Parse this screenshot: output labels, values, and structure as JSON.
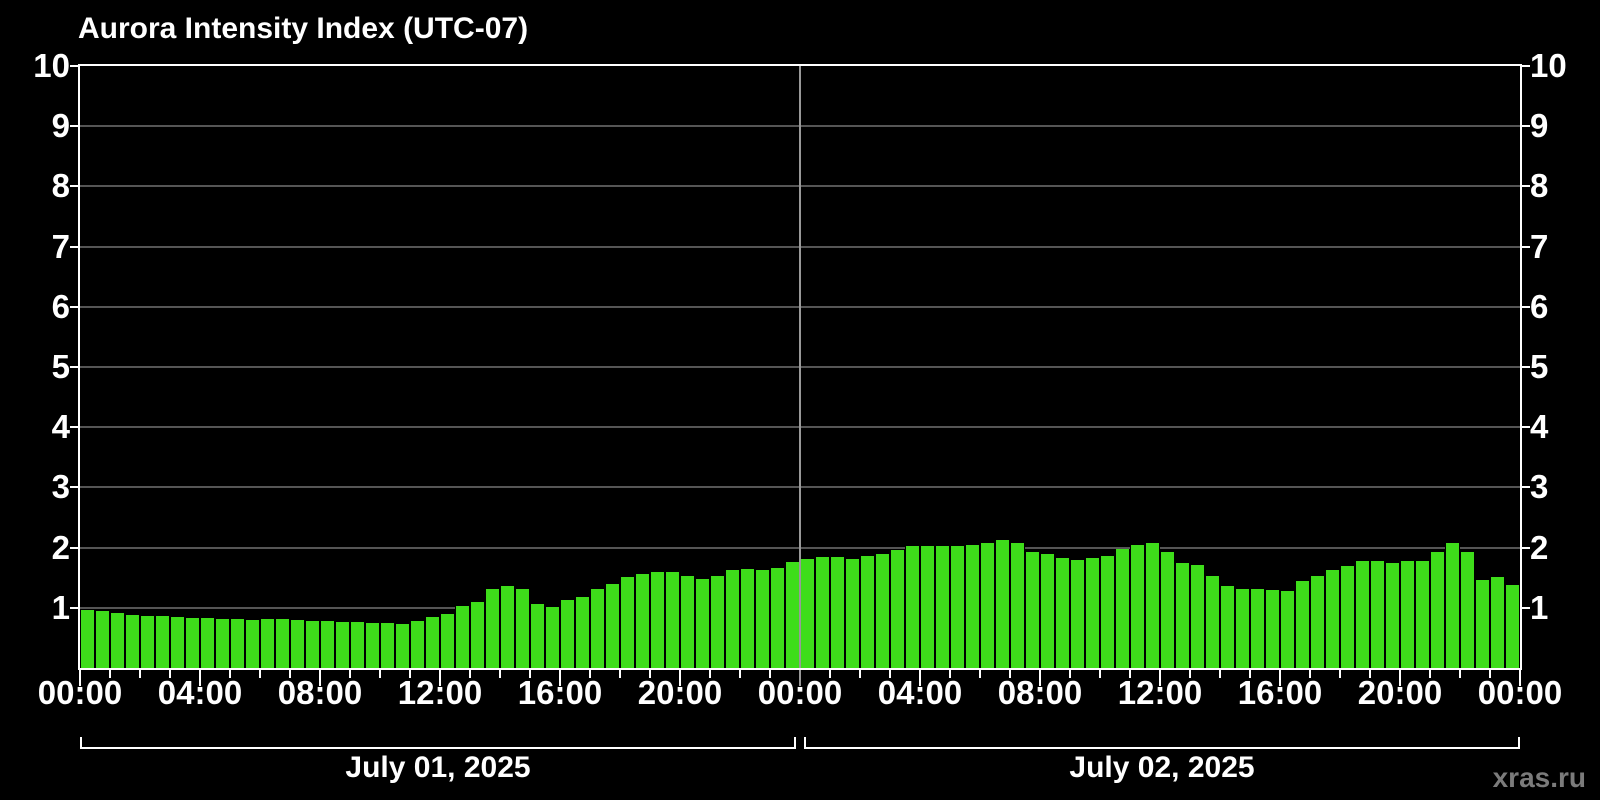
{
  "title": "Aurora Intensity Index (UTC-07)",
  "watermark": "xras.ru",
  "colors": {
    "background": "#000000",
    "bar": "#3edd1a",
    "grid": "#555555",
    "day_divider": "#999999",
    "axis": "#ffffff",
    "watermark": "#7b7b7b"
  },
  "chart_data": {
    "type": "bar",
    "title": "Aurora Intensity Index (UTC-07)",
    "ylabel": "",
    "xlabel": "",
    "ylim": [
      0,
      10
    ],
    "grid": "horizontal",
    "interval_minutes": 30,
    "y_tick_labels": [
      "1",
      "2",
      "3",
      "4",
      "5",
      "6",
      "7",
      "8",
      "9",
      "10"
    ],
    "x_major_tick_labels": [
      "00:00",
      "04:00",
      "08:00",
      "12:00",
      "16:00",
      "20:00",
      "00:00",
      "04:00",
      "08:00",
      "12:00",
      "16:00",
      "20:00",
      "00:00"
    ],
    "days": [
      {
        "date_label": "July 01, 2025",
        "start_time": "00:00",
        "values": [
          0.97,
          0.94,
          0.91,
          0.88,
          0.86,
          0.86,
          0.84,
          0.83,
          0.83,
          0.82,
          0.81,
          0.8,
          0.81,
          0.81,
          0.79,
          0.78,
          0.78,
          0.77,
          0.76,
          0.75,
          0.74,
          0.73,
          0.78,
          0.85,
          0.89,
          1.03,
          1.1,
          1.31,
          1.37,
          1.32,
          1.07,
          1.01,
          1.13,
          1.18,
          1.32,
          1.4,
          1.51,
          1.56,
          1.6,
          1.6,
          1.52,
          1.48,
          1.53,
          1.63,
          1.64,
          1.63,
          1.66,
          1.76
        ]
      },
      {
        "date_label": "July 02, 2025",
        "start_time": "00:00",
        "values": [
          1.81,
          1.84,
          1.84,
          1.81,
          1.86,
          1.89,
          1.96,
          2.02,
          2.03,
          2.03,
          2.03,
          2.04,
          2.08,
          2.12,
          2.07,
          1.93,
          1.89,
          1.83,
          1.79,
          1.82,
          1.86,
          1.97,
          2.05,
          2.08,
          1.93,
          1.75,
          1.71,
          1.53,
          1.36,
          1.31,
          1.32,
          1.29,
          1.28,
          1.44,
          1.53,
          1.63,
          1.69,
          1.78,
          1.78,
          1.75,
          1.78,
          1.78,
          1.92,
          2.07,
          1.92,
          1.46,
          1.51,
          1.38
        ]
      }
    ]
  }
}
